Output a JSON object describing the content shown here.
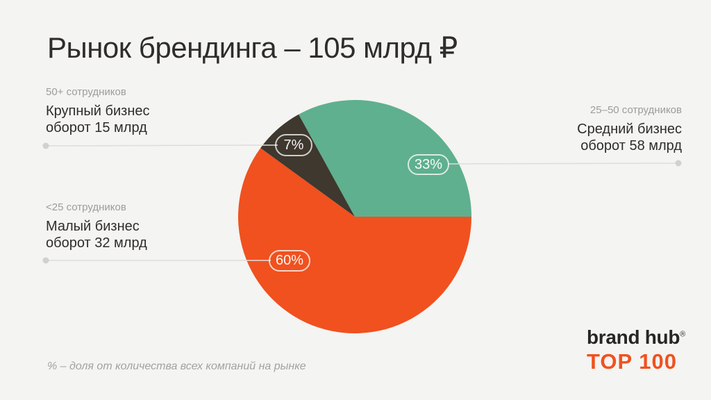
{
  "header": {
    "title": "Рынок брендинга – 105 млрд ₽"
  },
  "chart_data": {
    "type": "pie",
    "title": "Рынок брендинга – 105 млрд ₽",
    "total_label": "105 млрд ₽",
    "start_angle_deg": 0,
    "direction": "counterclockwise",
    "slices": [
      {
        "name": "Средний бизнес",
        "employees": "25–50 сотрудников",
        "turnover": "оборот 58 млрд",
        "percent": 33,
        "label": "33%",
        "color": "#5FB08F"
      },
      {
        "name": "Крупный бизнес",
        "employees": "50+ сотрудников",
        "turnover": "оборот 15 млрд",
        "percent": 7,
        "label": "7%",
        "color": "#3E382F"
      },
      {
        "name": "Малый бизнес",
        "employees": "<25 сотрудников",
        "turnover": "оборот 32 млрд",
        "percent": 60,
        "label": "60%",
        "color": "#F0511F"
      }
    ],
    "footnote": "% – доля от количества всех компаний на рынке"
  },
  "logo": {
    "brand": "brand hub",
    "reg": "®",
    "top": "TOP 100",
    "accent_color": "#F0511F"
  },
  "colors": {
    "background": "#F4F4F2",
    "text_dark": "#2F2D2A",
    "text_gray": "#9C9C99",
    "connector_line": "#DEDDDA",
    "connector_dot": "#D2D1CE"
  }
}
